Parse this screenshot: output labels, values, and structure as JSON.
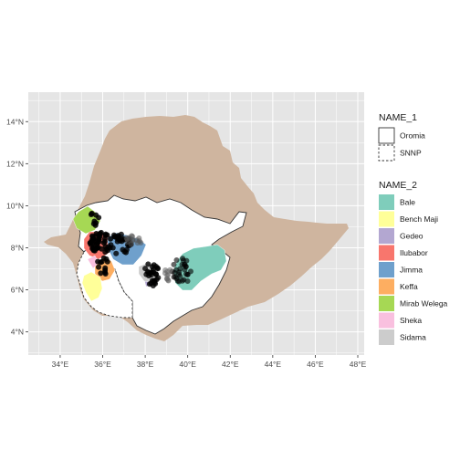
{
  "map": {
    "x_ticks": [
      {
        "lon": 34,
        "label": "34°E"
      },
      {
        "lon": 36,
        "label": "36°E"
      },
      {
        "lon": 38,
        "label": "38°E"
      },
      {
        "lon": 40,
        "label": "40°E"
      },
      {
        "lon": 42,
        "label": "42°E"
      },
      {
        "lon": 44,
        "label": "44°E"
      },
      {
        "lon": 46,
        "label": "46°E"
      },
      {
        "lon": 48,
        "label": "48°E"
      }
    ],
    "y_ticks": [
      {
        "lat": 4,
        "label": "4°N"
      },
      {
        "lat": 6,
        "label": "6°N"
      },
      {
        "lat": 8,
        "label": "8°N"
      },
      {
        "lat": 10,
        "label": "10°N"
      },
      {
        "lat": 12,
        "label": "12°N"
      },
      {
        "lat": 14,
        "label": "14°N"
      }
    ],
    "xlim": [
      32.5,
      48.3
    ],
    "ylim": [
      2.9,
      15.4
    ],
    "colors": {
      "panel": "#e5e5e5",
      "grid": "#ffffff",
      "country": "#cfb59f",
      "region": "#ffffff"
    }
  },
  "legend_name_1": {
    "title": "NAME_1",
    "items": [
      {
        "label": "Oromia",
        "line": "solid"
      },
      {
        "label": "SNNP",
        "line": "dashed"
      }
    ]
  },
  "legend_name_2": {
    "title": "NAME_2",
    "items": [
      {
        "label": "Bale",
        "color": "#7fcdbb"
      },
      {
        "label": "Bench Maji",
        "color": "#ffff99"
      },
      {
        "label": "Gedeo",
        "color": "#b3a7d1"
      },
      {
        "label": "Ilubabor",
        "color": "#f8766d"
      },
      {
        "label": "Jimma",
        "color": "#6fa0cc"
      },
      {
        "label": "Keffa",
        "color": "#fdae61"
      },
      {
        "label": "Mirab Welega",
        "color": "#a6d854"
      },
      {
        "label": "Sheka",
        "color": "#f9c0df"
      },
      {
        "label": "Sidama",
        "color": "#cccccc"
      }
    ]
  }
}
